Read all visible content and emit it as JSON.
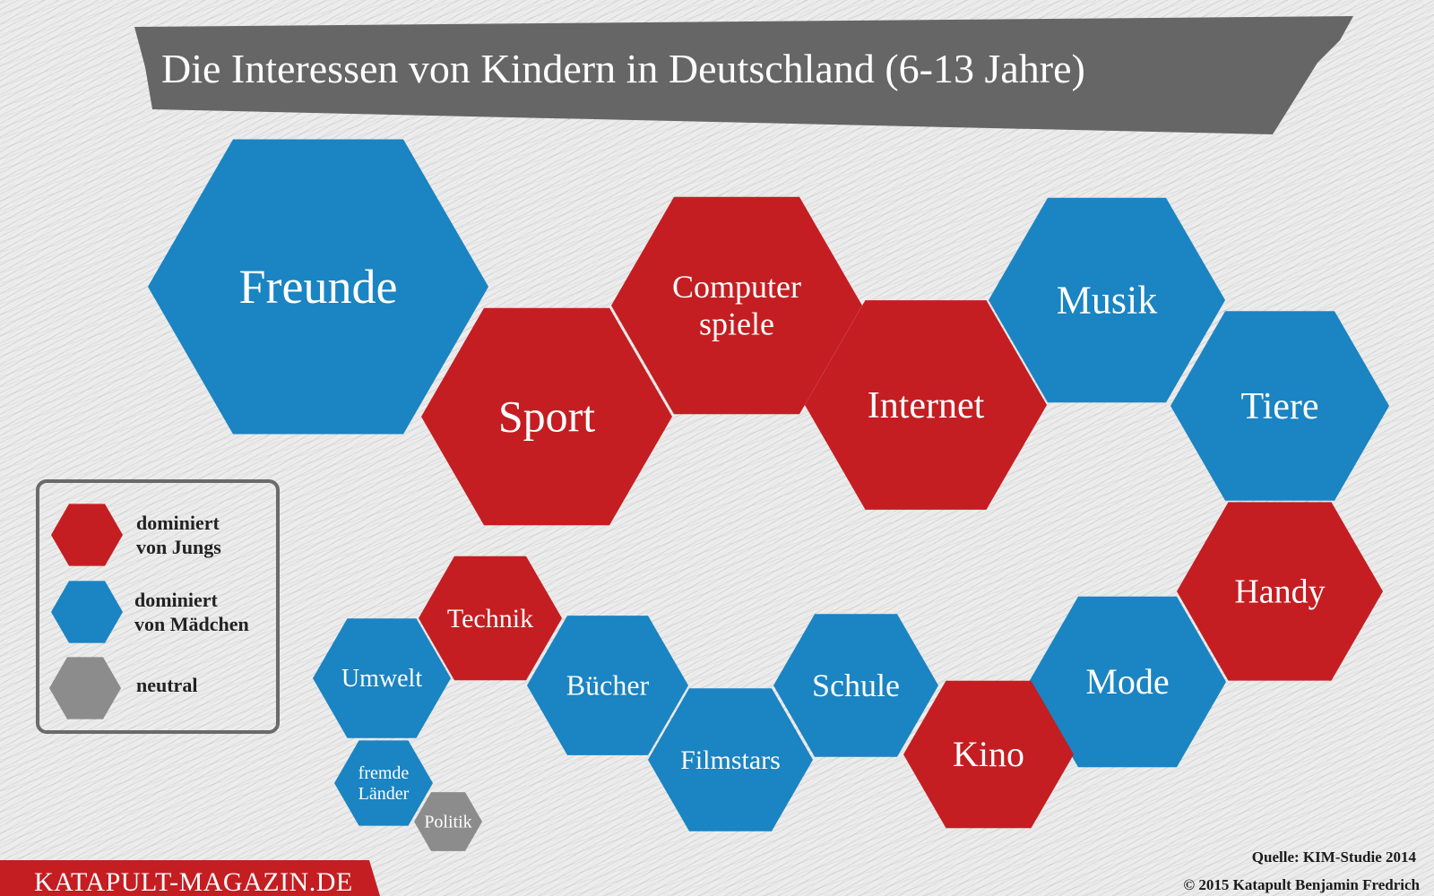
{
  "title": "Die Interessen von Kindern in Deutschland (6-13 Jahre)",
  "colors": {
    "jungs": "#c41e22",
    "maedchen": "#1b84c2",
    "neutral": "#8c8c8c",
    "banner": "#666666",
    "brand": "#c41e22"
  },
  "interests": [
    {
      "id": "freunde",
      "lines": [
        "Freunde"
      ],
      "group": "maedchen"
    },
    {
      "id": "sport",
      "lines": [
        "Sport"
      ],
      "group": "jungs"
    },
    {
      "id": "computerspiele",
      "lines": [
        "Computer",
        "spiele"
      ],
      "group": "jungs"
    },
    {
      "id": "internet",
      "lines": [
        "Internet"
      ],
      "group": "jungs"
    },
    {
      "id": "musik",
      "lines": [
        "Musik"
      ],
      "group": "maedchen"
    },
    {
      "id": "tiere",
      "lines": [
        "Tiere"
      ],
      "group": "maedchen"
    },
    {
      "id": "handy",
      "lines": [
        "Handy"
      ],
      "group": "jungs"
    },
    {
      "id": "mode",
      "lines": [
        "Mode"
      ],
      "group": "maedchen"
    },
    {
      "id": "kino",
      "lines": [
        "Kino"
      ],
      "group": "jungs"
    },
    {
      "id": "schule",
      "lines": [
        "Schule"
      ],
      "group": "maedchen"
    },
    {
      "id": "filmstars",
      "lines": [
        "Filmstars"
      ],
      "group": "maedchen"
    },
    {
      "id": "buecher",
      "lines": [
        "Bücher"
      ],
      "group": "maedchen"
    },
    {
      "id": "technik",
      "lines": [
        "Technik"
      ],
      "group": "jungs"
    },
    {
      "id": "umwelt",
      "lines": [
        "Umwelt"
      ],
      "group": "maedchen"
    },
    {
      "id": "fremde-laender",
      "lines": [
        "fremde",
        "Länder"
      ],
      "group": "maedchen"
    },
    {
      "id": "politik",
      "lines": [
        "Politik"
      ],
      "group": "neutral"
    }
  ],
  "legend": [
    {
      "id": "jungs",
      "lines": [
        "dominiert",
        "von Jungs"
      ]
    },
    {
      "id": "maedchen",
      "lines": [
        "dominiert",
        "von Mädchen"
      ]
    },
    {
      "id": "neutral",
      "lines": [
        "neutral"
      ]
    }
  ],
  "source": "Quelle: KIM-Studie 2014",
  "copyright": "© 2015 Katapult Benjamin Fredrich",
  "brand": "KATAPULT-MAGAZIN.DE"
}
